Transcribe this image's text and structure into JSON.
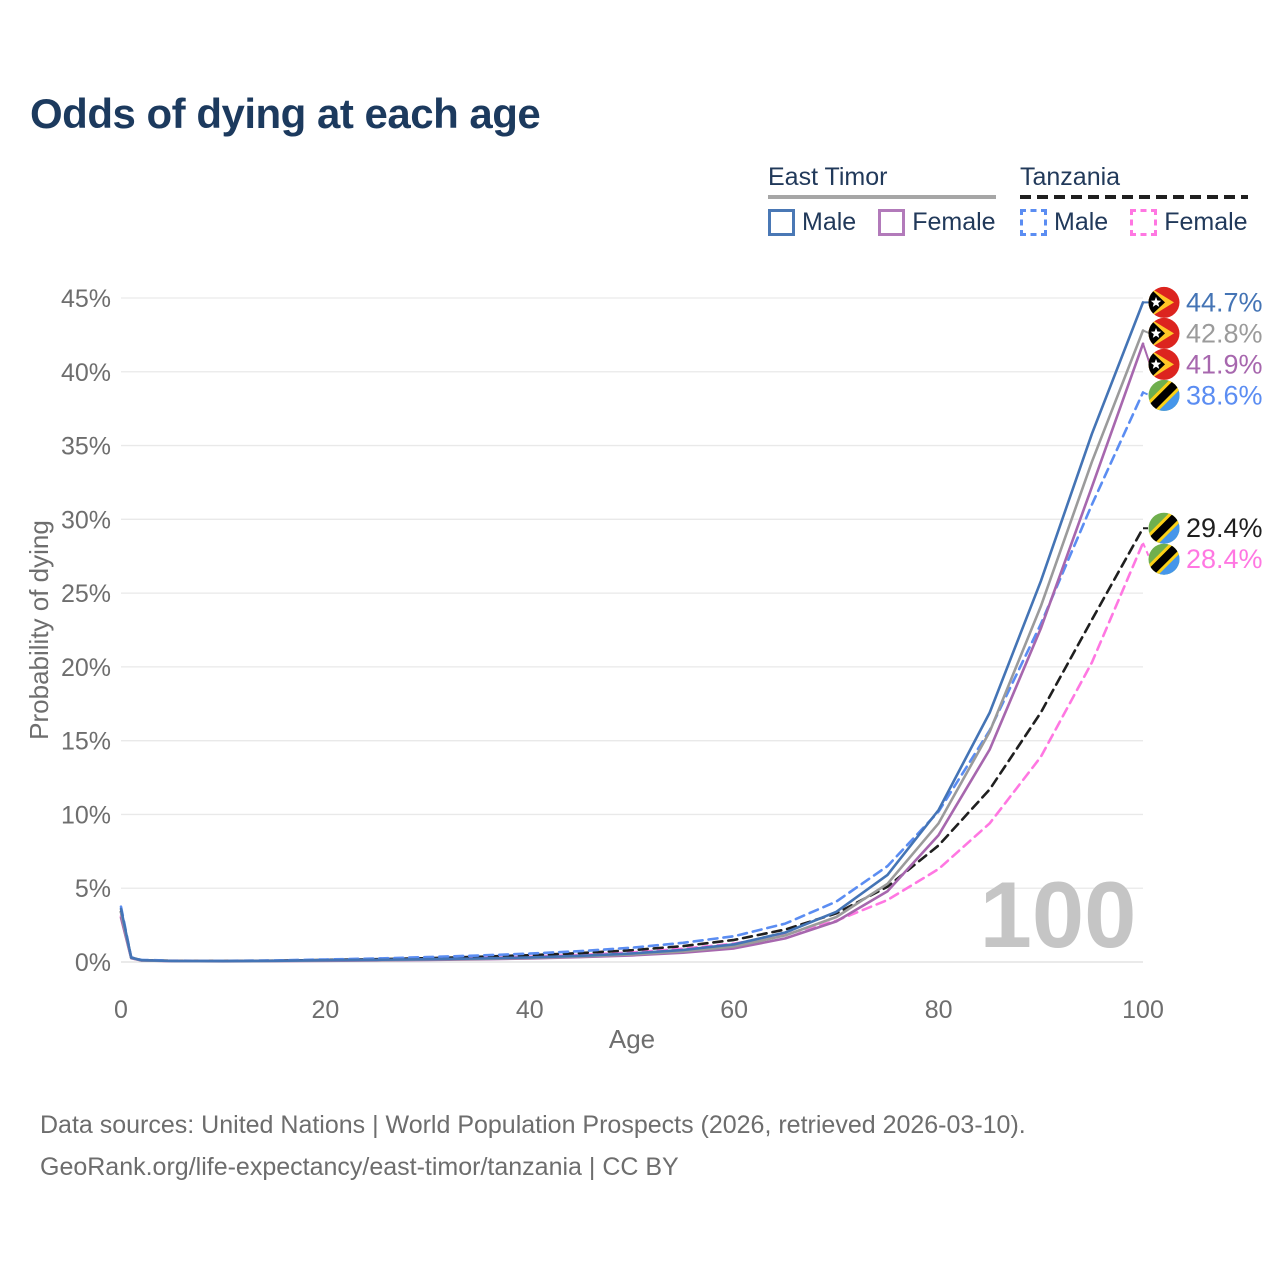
{
  "title": "Odds of dying at each age",
  "legend": {
    "groups": [
      {
        "country": "East Timor",
        "line_style": "solid",
        "line_color": "#a6a6a6",
        "items": [
          {
            "label": "Male",
            "color": "#4a78b5",
            "style": "solid"
          },
          {
            "label": "Female",
            "color": "#b27aba",
            "style": "solid"
          }
        ]
      },
      {
        "country": "Tanzania",
        "line_style": "dashed",
        "line_color": "#1f1f1f",
        "items": [
          {
            "label": "Male",
            "color": "#5b8df2",
            "style": "dashed"
          },
          {
            "label": "Female",
            "color": "#ff77e2",
            "style": "dashed"
          }
        ]
      }
    ]
  },
  "watermark": "100",
  "footer": {
    "line1": "Data sources: United Nations | World Population Prospects (2026, retrieved 2026-03-10).",
    "line2": "GeoRank.org/life-expectancy/east-timor/tanzania | CC BY"
  },
  "colors": {
    "title": "#1c3a5e",
    "axis_text": "#6e6e6e",
    "gridline": "#e9e9e9",
    "watermark": "#c5c5c5",
    "east_timor_male": "#4474b5",
    "east_timor_both": "#9b9b9b",
    "east_timor_female": "#a767ae",
    "tanzania_male": "#5b8df2",
    "tanzania_both": "#1f1f1f",
    "tanzania_female": "#ff77e2"
  },
  "chart_data": {
    "type": "line",
    "title": "Odds of dying at each age",
    "xlabel": "Age",
    "ylabel": "Probability of dying",
    "xlim": [
      0,
      100
    ],
    "ylim": [
      0,
      45
    ],
    "grid": "horizontal",
    "legend_position": "top-right",
    "x_ticks": [
      {
        "v": 0,
        "label": "0"
      },
      {
        "v": 20,
        "label": "20"
      },
      {
        "v": 40,
        "label": "40"
      },
      {
        "v": 60,
        "label": "60"
      },
      {
        "v": 80,
        "label": "80"
      },
      {
        "v": 100,
        "label": "100"
      }
    ],
    "y_ticks": [
      {
        "v": 0,
        "label": "0%"
      },
      {
        "v": 5,
        "label": "5%"
      },
      {
        "v": 10,
        "label": "10%"
      },
      {
        "v": 15,
        "label": "15%"
      },
      {
        "v": 20,
        "label": "20%"
      },
      {
        "v": 25,
        "label": "25%"
      },
      {
        "v": 30,
        "label": "30%"
      },
      {
        "v": 35,
        "label": "35%"
      },
      {
        "v": 40,
        "label": "40%"
      },
      {
        "v": 45,
        "label": "45%"
      }
    ],
    "x": [
      0,
      1,
      2,
      5,
      10,
      15,
      20,
      25,
      30,
      35,
      40,
      45,
      50,
      55,
      60,
      65,
      70,
      75,
      80,
      85,
      90,
      95,
      100
    ],
    "series": [
      {
        "name": "Tanzania Female",
        "country": "Tanzania",
        "sex": "Female",
        "color": "#ff77e2",
        "dash": "dashed",
        "flag_icon": "tanzania-flag-icon",
        "end_label": "28.4%",
        "end_value": 28.4,
        "values": [
          3.1,
          0.27,
          0.11,
          0.07,
          0.06,
          0.08,
          0.11,
          0.15,
          0.2,
          0.27,
          0.36,
          0.48,
          0.65,
          0.9,
          1.25,
          1.85,
          2.8,
          4.2,
          6.3,
          9.4,
          13.9,
          20.3,
          28.4
        ]
      },
      {
        "name": "Tanzania Both sexes",
        "country": "Tanzania",
        "sex": "Both",
        "color": "#1f1f1f",
        "dash": "dashed",
        "flag_icon": "tanzania-flag-icon",
        "end_label": "29.4%",
        "end_value": 29.4,
        "values": [
          3.4,
          0.3,
          0.12,
          0.08,
          0.07,
          0.09,
          0.14,
          0.19,
          0.26,
          0.35,
          0.46,
          0.6,
          0.8,
          1.08,
          1.5,
          2.2,
          3.3,
          5.1,
          7.9,
          11.7,
          16.9,
          23.2,
          29.4
        ]
      },
      {
        "name": "Tanzania Male",
        "country": "Tanzania",
        "sex": "Male",
        "color": "#5b8df2",
        "dash": "dashed",
        "flag_icon": "tanzania-flag-icon",
        "end_label": "38.6%",
        "end_value": 38.6,
        "values": [
          3.75,
          0.32,
          0.14,
          0.09,
          0.08,
          0.11,
          0.17,
          0.24,
          0.33,
          0.44,
          0.57,
          0.74,
          0.97,
          1.3,
          1.75,
          2.6,
          4.1,
          6.5,
          10.2,
          15.7,
          22.9,
          31.0,
          38.6
        ]
      },
      {
        "name": "East Timor Female",
        "country": "East Timor",
        "sex": "Female",
        "color": "#a767ae",
        "dash": "solid",
        "flag_icon": "east-timor-flag-icon",
        "end_label": "41.9%",
        "end_value": 41.9,
        "values": [
          3.0,
          0.26,
          0.1,
          0.06,
          0.05,
          0.06,
          0.08,
          0.11,
          0.14,
          0.18,
          0.24,
          0.33,
          0.45,
          0.63,
          0.92,
          1.6,
          2.75,
          4.8,
          8.6,
          14.4,
          22.6,
          32.2,
          41.9
        ]
      },
      {
        "name": "East Timor Both sexes",
        "country": "East Timor",
        "sex": "Both",
        "color": "#9b9b9b",
        "dash": "solid",
        "flag_icon": "east-timor-flag-icon",
        "end_label": "42.8%",
        "end_value": 42.8,
        "values": [
          3.35,
          0.28,
          0.11,
          0.065,
          0.055,
          0.07,
          0.1,
          0.13,
          0.17,
          0.21,
          0.27,
          0.37,
          0.51,
          0.72,
          1.05,
          1.8,
          3.05,
          5.3,
          9.4,
          15.6,
          24.1,
          33.9,
          42.8
        ]
      },
      {
        "name": "East Timor Male",
        "country": "East Timor",
        "sex": "Male",
        "color": "#4474b5",
        "dash": "solid",
        "flag_icon": "east-timor-flag-icon",
        "end_label": "44.7%",
        "end_value": 44.7,
        "values": [
          3.6,
          0.3,
          0.12,
          0.07,
          0.06,
          0.08,
          0.12,
          0.15,
          0.19,
          0.24,
          0.31,
          0.42,
          0.58,
          0.82,
          1.2,
          2.0,
          3.4,
          5.9,
          10.3,
          16.9,
          25.8,
          35.8,
          44.7
        ]
      }
    ]
  }
}
